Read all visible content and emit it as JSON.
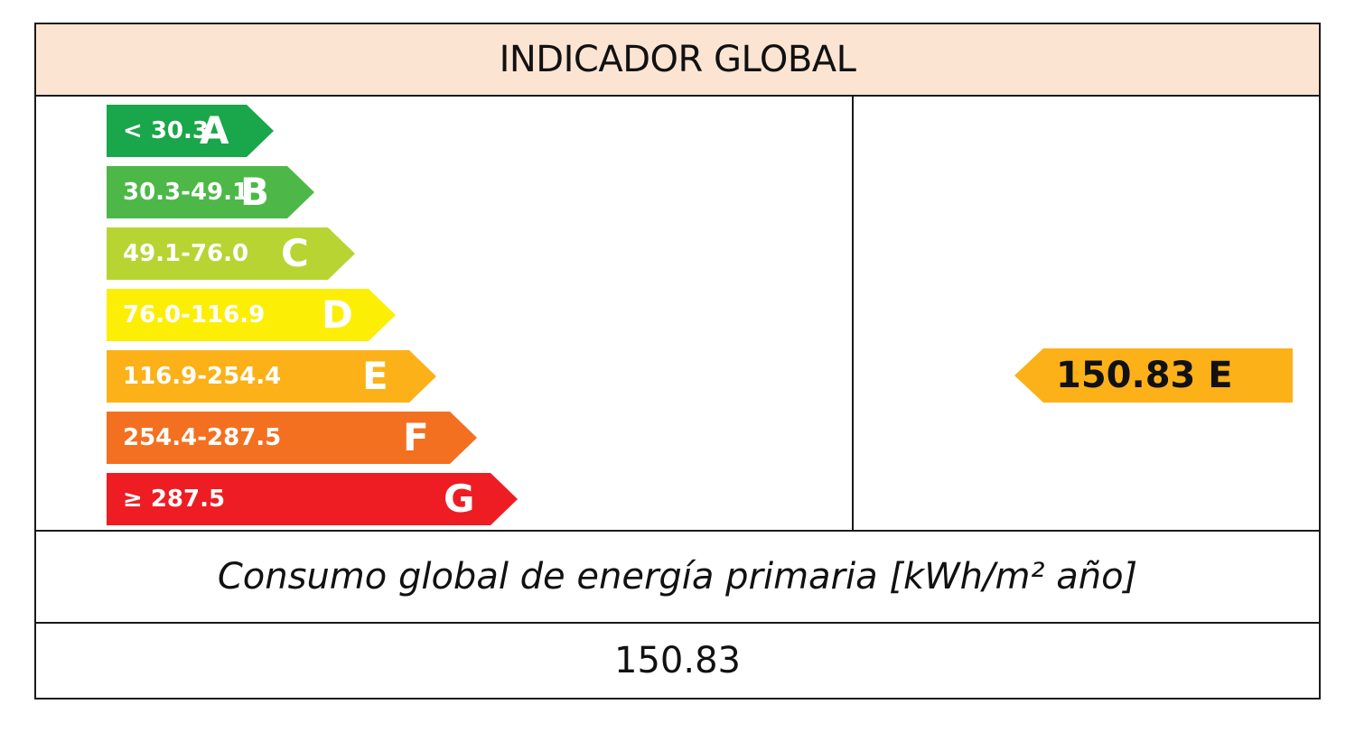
{
  "title": "INDICADOR GLOBAL",
  "chart_data": {
    "type": "bar",
    "categories": [
      "A",
      "B",
      "C",
      "D",
      "E",
      "F",
      "G"
    ],
    "ranges": [
      "< 30.3",
      "30.3-49.1",
      "49.1-76.0",
      "76.0-116.9",
      "116.9-254.4",
      "254.4-287.5",
      "≥ 287.5"
    ],
    "colors": [
      "#1aa64a",
      "#4db848",
      "#b7d433",
      "#fdee06",
      "#fbb117",
      "#f37021",
      "#ee1d23"
    ],
    "result": {
      "value": 150.83,
      "class": "E",
      "label": "150.83 E",
      "color": "#fbb117"
    },
    "caption": "Consumo global de energía primaria [kWh/m² año]"
  },
  "bands": [
    {
      "range": "< 30.3",
      "letter": "A"
    },
    {
      "range": "30.3-49.1",
      "letter": "B"
    },
    {
      "range": "49.1-76.0",
      "letter": "C"
    },
    {
      "range": "76.0-116.9",
      "letter": "D"
    },
    {
      "range": "116.9-254.4",
      "letter": "E"
    },
    {
      "range": "254.4-287.5",
      "letter": "F"
    },
    {
      "range": "≥ 287.5",
      "letter": "G"
    }
  ],
  "value_text": "150.83"
}
